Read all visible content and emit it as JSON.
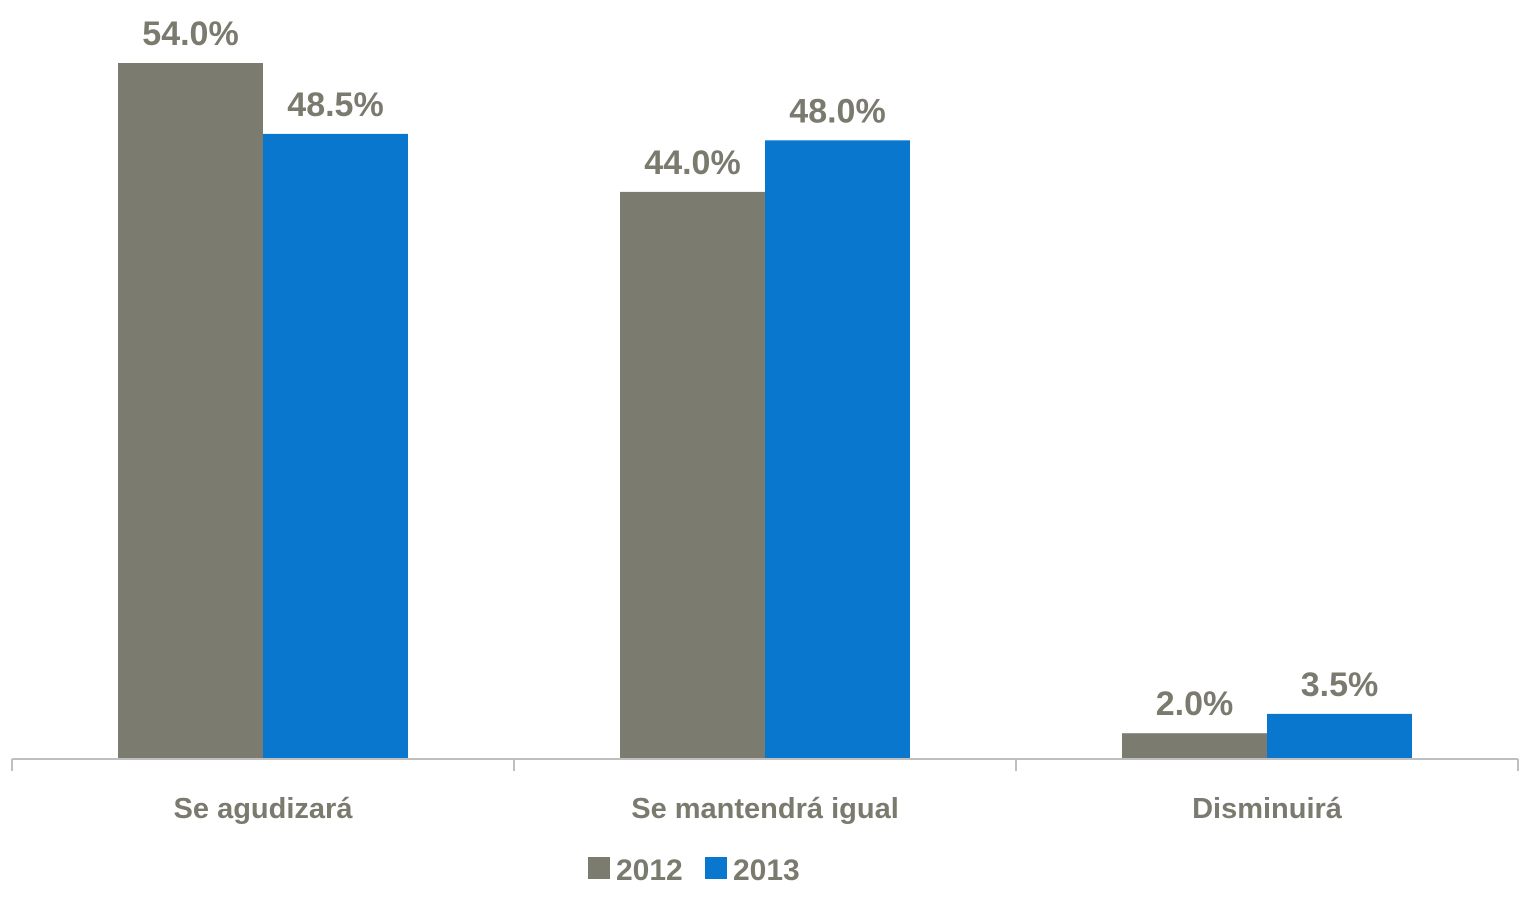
{
  "chart_data": {
    "type": "bar",
    "categories": [
      "Se agudizará",
      "Se mantendrá igual",
      "Disminuirá"
    ],
    "series": [
      {
        "name": "2012",
        "values": [
          54.0,
          44.0,
          2.0
        ],
        "labels": [
          "54.0%",
          "44.0%",
          "2.0%"
        ],
        "color": "#7b7b6f"
      },
      {
        "name": "2013",
        "values": [
          48.5,
          48.0,
          3.5
        ],
        "labels": [
          "48.5%",
          "48.0%",
          "3.5%"
        ],
        "color": "#0877cd"
      }
    ],
    "value_unit": "%",
    "ylim": [
      0,
      54.0
    ],
    "grid": false,
    "legend_position": "bottom",
    "axis_color": "#bfbfbf",
    "label_color": "#7a7a6f"
  }
}
